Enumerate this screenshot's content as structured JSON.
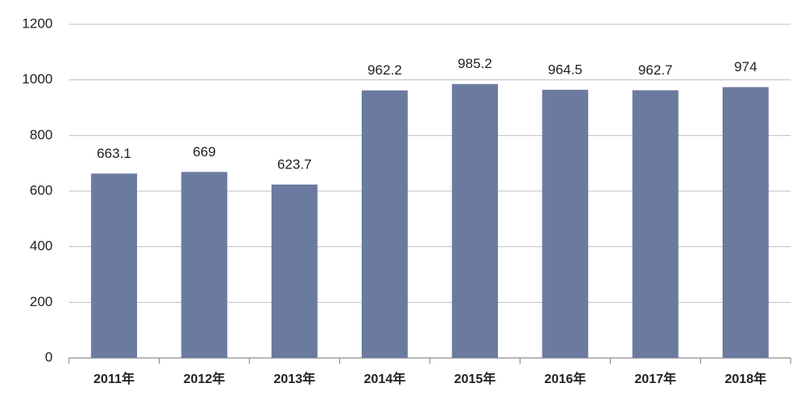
{
  "chart_data": {
    "type": "bar",
    "categories": [
      "2011年",
      "2012年",
      "2013年",
      "2014年",
      "2015年",
      "2016年",
      "2017年",
      "2018年"
    ],
    "values": [
      663.1,
      669,
      623.7,
      962.2,
      985.2,
      964.5,
      962.7,
      974
    ],
    "color": "#6b7a9f",
    "ylim": [
      0,
      1200
    ],
    "yticks": [
      0,
      200,
      400,
      600,
      800,
      1000,
      1200
    ],
    "grid": true
  }
}
